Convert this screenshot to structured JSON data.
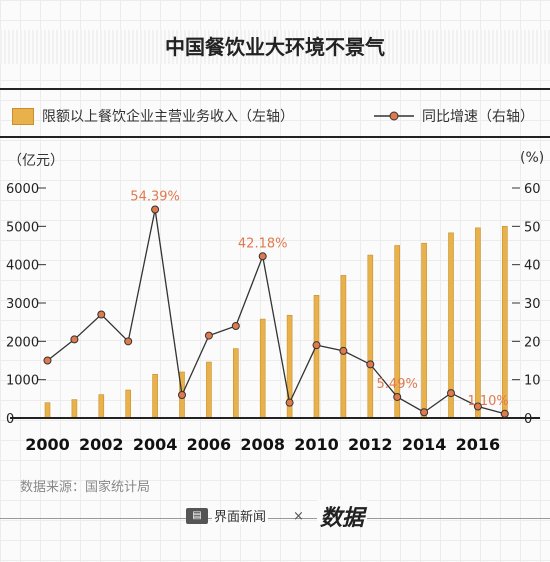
{
  "header": {
    "title": "中国餐饮业大环境不景气"
  },
  "legend": {
    "bar_label": "限额以上餐饮企业主营业务收入（左轴）",
    "line_label": "同比增速（右轴）"
  },
  "axes": {
    "left_unit": "（亿元）",
    "right_unit": "(%)"
  },
  "footer": {
    "source": "数据来源：国家统计局",
    "brand1": "界面新闻",
    "times": "×",
    "brand2": "数据"
  },
  "colors": {
    "bar": "#e8b14c",
    "bar_edge": "#c98f2b",
    "line": "#333333",
    "marker": "#e07a4d",
    "annotation": "#e07a4d"
  },
  "chart_data": {
    "type": "bar",
    "title": "中国餐饮业大环境不景气",
    "x": [
      2000,
      2001,
      2002,
      2003,
      2004,
      2005,
      2006,
      2007,
      2008,
      2009,
      2010,
      2011,
      2012,
      2013,
      2014,
      2015,
      2016,
      2017
    ],
    "x_tick_labels": [
      "2000",
      "2002",
      "2004",
      "2006",
      "2008",
      "2010",
      "2012",
      "2014",
      "2016"
    ],
    "left_ylim": [
      0,
      6000
    ],
    "left_ticks": [
      0,
      1000,
      2000,
      3000,
      4000,
      5000,
      6000
    ],
    "right_ylim": [
      0,
      60
    ],
    "right_ticks": [
      0,
      10,
      20,
      30,
      40,
      50,
      60
    ],
    "series": [
      {
        "name": "限额以上餐饮企业主营业务收入（左轴）",
        "type": "bar",
        "axis": "left",
        "values": [
          400,
          480,
          610,
          730,
          1140,
          1200,
          1460,
          1810,
          2580,
          2680,
          3200,
          3720,
          4250,
          4500,
          4560,
          4830,
          4960,
          5000
        ]
      },
      {
        "name": "同比增速（右轴）",
        "type": "line",
        "axis": "right",
        "values": [
          15,
          20.5,
          27,
          20,
          54.39,
          6,
          21.5,
          24,
          42.18,
          4,
          19,
          17.5,
          14,
          5.49,
          1.5,
          6.5,
          3,
          1.1
        ]
      }
    ],
    "annotations": [
      {
        "text": "54.39%",
        "index": 4
      },
      {
        "text": "42.18%",
        "index": 8
      },
      {
        "text": "5.49%",
        "index": 13
      },
      {
        "text": "1.10%",
        "index": 17
      }
    ],
    "grid": true,
    "legend_position": "top"
  }
}
